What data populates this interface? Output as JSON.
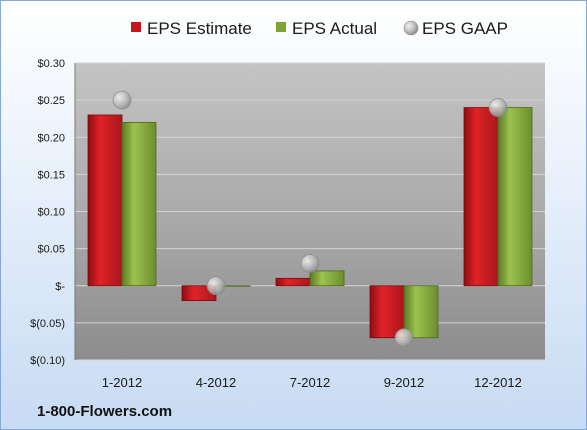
{
  "chart_data": {
    "type": "bar",
    "categories": [
      "1-2012",
      "4-2012",
      "7-2012",
      "9-2012",
      "12-2012"
    ],
    "series": [
      {
        "name": "EPS Estimate",
        "kind": "bar",
        "color": "#c8151b",
        "values": [
          0.23,
          -0.02,
          0.01,
          -0.07,
          0.24
        ]
      },
      {
        "name": "EPS Actual",
        "kind": "bar",
        "color": "#7da337",
        "values": [
          0.22,
          0,
          0.02,
          -0.07,
          0.24
        ]
      },
      {
        "name": "EPS GAAP",
        "kind": "marker",
        "color": "#b6b6b6",
        "values": [
          0.25,
          0,
          0.03,
          -0.07,
          0.24
        ]
      }
    ],
    "y_ticks": [
      {
        "value": 0.3,
        "label": "$0.30"
      },
      {
        "value": 0.25,
        "label": "$0.25"
      },
      {
        "value": 0.2,
        "label": "$0.20"
      },
      {
        "value": 0.15,
        "label": "$0.15"
      },
      {
        "value": 0.1,
        "label": "$0.10"
      },
      {
        "value": 0.05,
        "label": "$0.05"
      },
      {
        "value": 0.0,
        "label": "$-"
      },
      {
        "value": -0.05,
        "label": "$(0.05)"
      },
      {
        "value": -0.1,
        "label": "$(0.10)"
      }
    ],
    "ylim": [
      -0.1,
      0.3
    ],
    "grid": true,
    "legend_position": "top"
  },
  "brand_label": "1-800-Flowers.com"
}
